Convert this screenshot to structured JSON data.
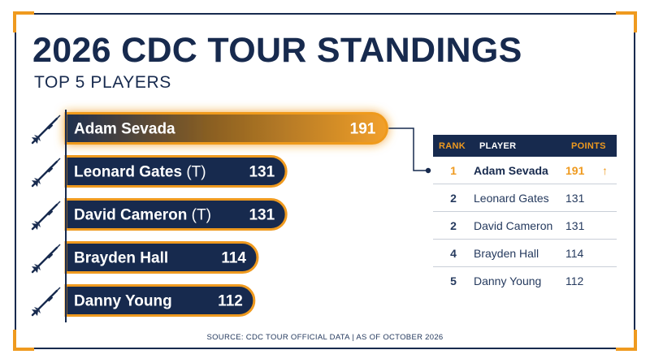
{
  "title": "2026 CDC TOUR STANDINGS",
  "subtitle": "TOP 5 PLAYERS",
  "source": "SOURCE: CDC TOUR OFFICIAL DATA | AS OF OCTOBER 2026",
  "colors": {
    "navy": "#172a4e",
    "accent": "#ef9a1f",
    "white": "#ffffff"
  },
  "icons": {
    "bar_icon": "dart-icon",
    "trend_icon": "up-arrow-icon"
  },
  "chart_data": {
    "type": "bar",
    "orientation": "horizontal",
    "title": "2026 CDC TOUR STANDINGS",
    "subtitle": "TOP 5 PLAYERS",
    "categories": [
      "Adam Sevada",
      "Leonard Gates",
      "David Cameron",
      "Brayden Hall",
      "Danny Young"
    ],
    "suffixes": [
      "",
      "(T)",
      "(T)",
      "",
      ""
    ],
    "values": [
      191,
      131,
      131,
      114,
      112
    ],
    "highlight_index": 0,
    "grid": false,
    "legend": "none"
  },
  "table": {
    "headers": {
      "rank": "RANK",
      "player": "PLAYER",
      "points": "POINTS"
    },
    "rows": [
      {
        "rank": "1",
        "player": "Adam Sevada",
        "points": "191",
        "trend": "↑"
      },
      {
        "rank": "2",
        "player": "Leonard Gates",
        "points": "131"
      },
      {
        "rank": "2",
        "player": "David Cameron",
        "points": "131"
      },
      {
        "rank": "4",
        "player": "Brayden Hall",
        "points": "114"
      },
      {
        "rank": "5",
        "player": "Danny Young",
        "points": "112"
      }
    ]
  }
}
